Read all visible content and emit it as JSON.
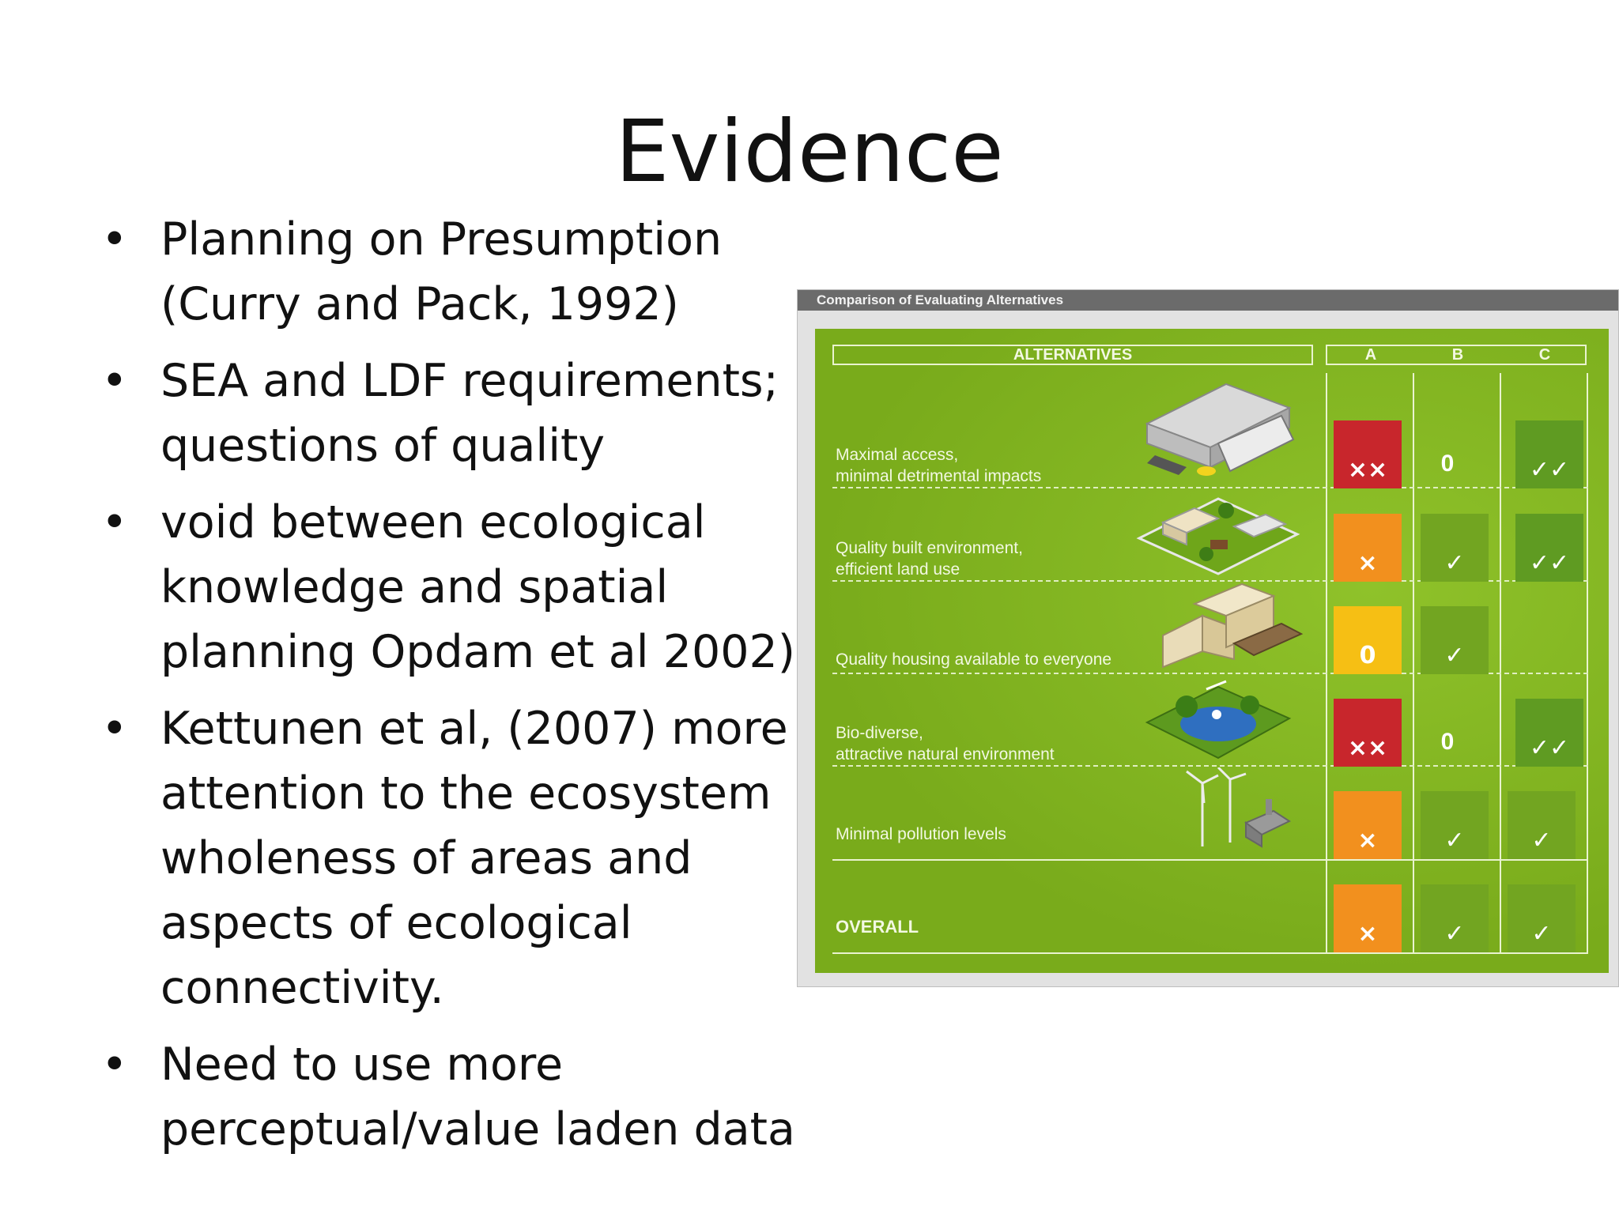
{
  "slide": {
    "title": "Evidence",
    "bullets": [
      {
        "line1": "Planning on Presumption",
        "line2": "(Curry and Pack, 1992)"
      },
      {
        "line1": "SEA and LDF requirements;",
        "line2": "questions of quality"
      },
      {
        "line1": "void between ecological",
        "line2": "knowledge and spatial",
        "line3": "planning  Opdam et al 2002)"
      },
      {
        "line1": "Kettunen et al, (2007) more",
        "line2": "attention to the ecosystem",
        "line3": "wholeness of areas and",
        "line4": "aspects of  ecological",
        "line5": "connectivity."
      },
      {
        "line1": "Need to use more",
        "line2": "perceptual/value laden data"
      }
    ],
    "bullet_glyph": "•"
  },
  "figure": {
    "title": "Comparison of Evaluating Alternatives",
    "header_alternatives": "ALTERNATIVES",
    "columns": [
      "A",
      "B",
      "C"
    ],
    "colors": {
      "red": "#c8262c",
      "orange": "#f2901e",
      "yellow": "#f6bf14",
      "dark_green": "#5f9b22",
      "board": "#7fb21e"
    },
    "rows": [
      {
        "label1": "Maximal access,",
        "label2": "minimal detrimental impacts",
        "a": "××",
        "b": "0",
        "c": "✓✓"
      },
      {
        "label1": "Quality built environment,",
        "label2": "efficient land use",
        "a": "×",
        "b": "✓",
        "c": "✓✓"
      },
      {
        "label1": "Quality housing available to everyone",
        "a": "0",
        "b": "✓",
        "c": ""
      },
      {
        "label1": "Bio-diverse,",
        "label2": "attractive natural environment",
        "a": "××",
        "b": "0",
        "c": "✓✓"
      },
      {
        "label1": "Minimal pollution levels",
        "a": "×",
        "b": "✓",
        "c": "✓"
      },
      {
        "label1": "OVERALL",
        "a": "×",
        "b": "✓",
        "c": "✓"
      }
    ]
  }
}
